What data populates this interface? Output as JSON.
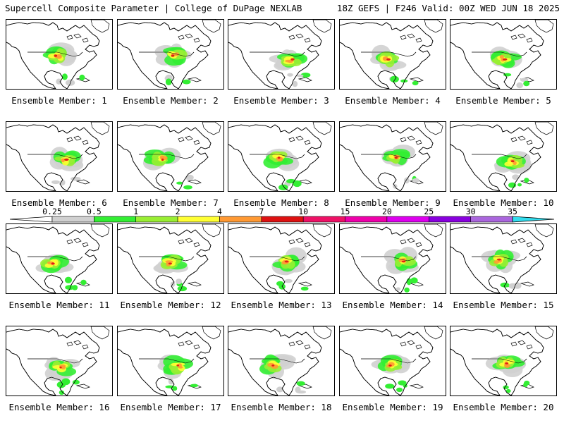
{
  "header": {
    "left": "Supercell Composite Parameter | College of DuPage NEXLAB",
    "right": "18Z GEFS | F246 Valid: 00Z WED JUN 18 2025"
  },
  "members": [
    {
      "label": "Ensemble Member: 1"
    },
    {
      "label": "Ensemble Member: 2"
    },
    {
      "label": "Ensemble Member: 3"
    },
    {
      "label": "Ensemble Member: 4"
    },
    {
      "label": "Ensemble Member: 5"
    },
    {
      "label": "Ensemble Member: 6"
    },
    {
      "label": "Ensemble Member: 7"
    },
    {
      "label": "Ensemble Member: 8"
    },
    {
      "label": "Ensemble Member: 9"
    },
    {
      "label": "Ensemble Member: 10"
    },
    {
      "label": "Ensemble Member: 11"
    },
    {
      "label": "Ensemble Member: 12"
    },
    {
      "label": "Ensemble Member: 13"
    },
    {
      "label": "Ensemble Member: 14"
    },
    {
      "label": "Ensemble Member: 15"
    },
    {
      "label": "Ensemble Member: 16"
    },
    {
      "label": "Ensemble Member: 17"
    },
    {
      "label": "Ensemble Member: 18"
    },
    {
      "label": "Ensemble Member: 19"
    },
    {
      "label": "Ensemble Member: 20"
    }
  ],
  "legend": {
    "ticks": [
      "0.25",
      "0.5",
      "1",
      "2",
      "4",
      "7",
      "10",
      "15",
      "20",
      "25",
      "30",
      "35"
    ],
    "colors": [
      "#d0d0d0",
      "#33ee33",
      "#99ee33",
      "#ffff33",
      "#ff9933",
      "#dd1111",
      "#ee1166",
      "#ee00aa",
      "#dd00ee",
      "#8800dd",
      "#aa66dd",
      "#33ddee"
    ]
  }
}
